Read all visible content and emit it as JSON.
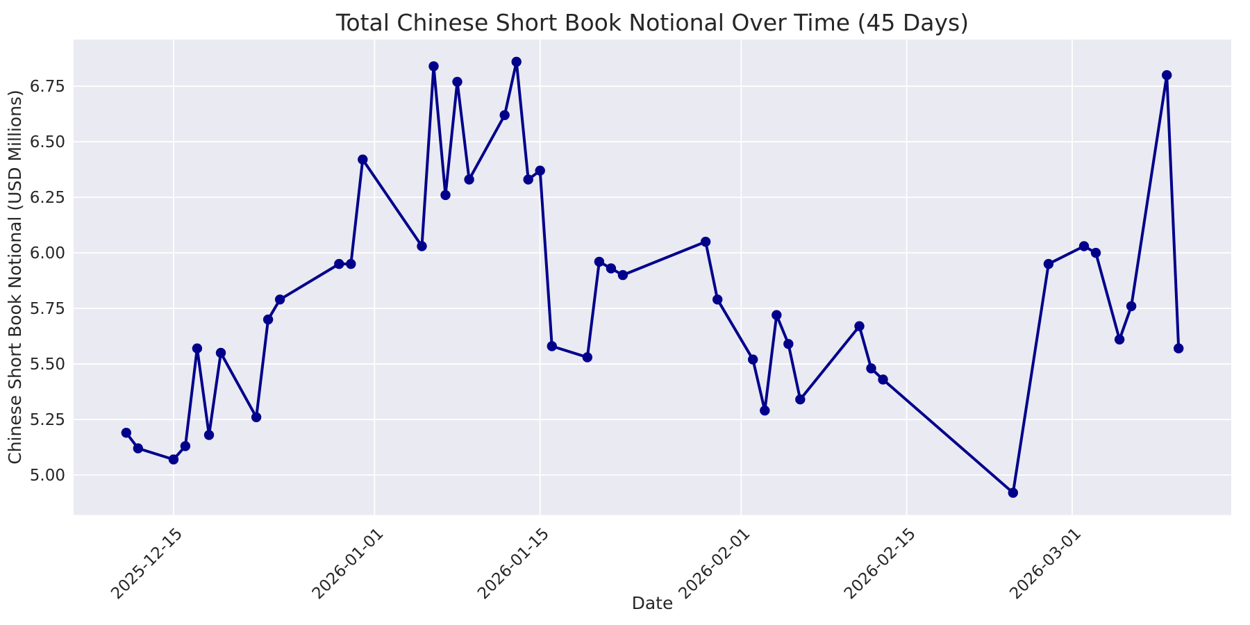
{
  "colors": {
    "figure_background": "#ffffff",
    "plot_background": "#eaeaf2",
    "grid_color": "#ffffff",
    "line_color": "#00008b",
    "marker_color": "#00008b",
    "text_color": "#262626"
  },
  "chart_data": {
    "type": "line",
    "title": "Total Chinese Short Book Notional Over Time (45 Days)",
    "xlabel": "Date",
    "ylabel": "Chinese Short Book Notional (USD Millions)",
    "legend": "none",
    "grid": true,
    "marker": "circle",
    "ylim": [
      4.82,
      6.96
    ],
    "x_margin_frac": 0.05,
    "yticks": [
      5.0,
      5.25,
      5.5,
      5.75,
      6.0,
      6.25,
      6.5,
      6.75
    ],
    "xticks": [
      "2025-12-15",
      "2026-01-01",
      "2026-01-15",
      "2026-02-01",
      "2026-02-15",
      "2026-03-01"
    ],
    "x": [
      "2025-12-11",
      "2025-12-12",
      "2025-12-15",
      "2025-12-16",
      "2025-12-17",
      "2025-12-18",
      "2025-12-19",
      "2025-12-22",
      "2025-12-23",
      "2025-12-24",
      "2025-12-29",
      "2025-12-30",
      "2025-12-31",
      "2026-01-05",
      "2026-01-06",
      "2026-01-07",
      "2026-01-08",
      "2026-01-09",
      "2026-01-12",
      "2026-01-13",
      "2026-01-14",
      "2026-01-15",
      "2026-01-16",
      "2026-01-19",
      "2026-01-20",
      "2026-01-21",
      "2026-01-22",
      "2026-01-29",
      "2026-01-30",
      "2026-02-02",
      "2026-02-03",
      "2026-02-04",
      "2026-02-05",
      "2026-02-06",
      "2026-02-11",
      "2026-02-12",
      "2026-02-13",
      "2026-02-24",
      "2026-02-27",
      "2026-03-02",
      "2026-03-03",
      "2026-03-05",
      "2026-03-06",
      "2026-03-09",
      "2026-03-10"
    ],
    "values": [
      5.19,
      5.12,
      5.07,
      5.13,
      5.57,
      5.18,
      5.55,
      5.26,
      5.7,
      5.79,
      5.95,
      5.95,
      6.42,
      6.03,
      6.84,
      6.26,
      6.77,
      6.33,
      6.62,
      6.86,
      6.33,
      6.37,
      5.58,
      5.53,
      5.96,
      5.93,
      5.9,
      6.05,
      5.79,
      5.52,
      5.29,
      5.72,
      5.59,
      5.34,
      5.67,
      5.48,
      5.43,
      4.92,
      5.95,
      6.03,
      6.0,
      5.61,
      5.76,
      6.8,
      5.57
    ]
  }
}
